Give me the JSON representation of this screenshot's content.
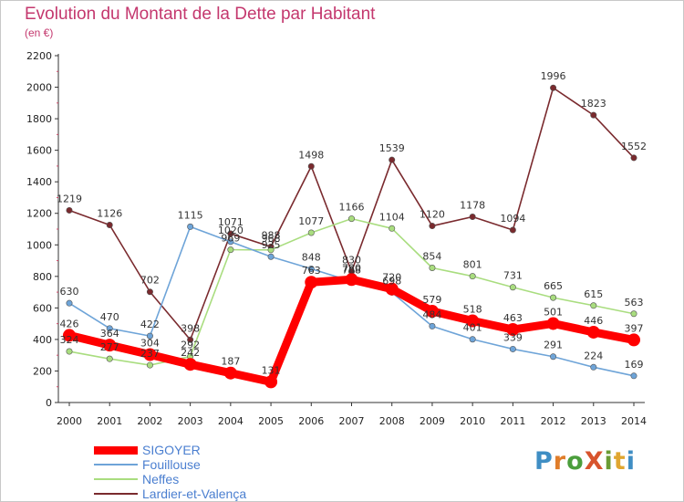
{
  "title": "Evolution du Montant de la Dette par Habitant",
  "subtitle": "(en €)",
  "logo": {
    "text": "ProXiti",
    "letter_colors": [
      "#3f8ec4",
      "#e07d2a",
      "#4b9e3c",
      "#d8542d",
      "#6a9b34",
      "#e0a630",
      "#3f8ec4"
    ]
  },
  "chart_data": {
    "type": "line",
    "title": "Evolution du Montant de la Dette par Habitant",
    "subtitle": "(en €)",
    "xlabel": "",
    "ylabel": "",
    "x": [
      "2000",
      "2001",
      "2002",
      "2003",
      "2004",
      "2005",
      "2006",
      "2007",
      "2008",
      "2009",
      "2010",
      "2011",
      "2012",
      "2013",
      "2014"
    ],
    "ylim": [
      0,
      2200
    ],
    "yticks": [
      "0",
      "200",
      "400",
      "600",
      "800",
      "1000",
      "1200",
      "1400",
      "1600",
      "1800",
      "2000",
      "2200"
    ],
    "grid": false,
    "legend_position": "bottom-left",
    "series": [
      {
        "name": "Lardier-et-Valença",
        "color": "#7a2a2e",
        "values": [
          1219,
          1126,
          702,
          398,
          1071,
          988,
          1498,
          830,
          1539,
          1120,
          1178,
          1094,
          1996,
          1823,
          1552
        ],
        "labels": [
          "1219",
          "1126",
          "702",
          "398",
          "1071",
          "988",
          "1498",
          "830",
          "1539",
          "1120",
          "1178",
          "1094",
          "1996",
          "1823",
          "1552"
        ]
      },
      {
        "name": "Neffes",
        "color": "#a9dd7f",
        "values": [
          324,
          277,
          237,
          292,
          969,
          968,
          1077,
          1166,
          1104,
          854,
          801,
          731,
          665,
          615,
          563
        ],
        "labels": [
          "324",
          "277",
          "237",
          "292",
          "969",
          "968",
          "1077",
          "1166",
          "1104",
          "854",
          "801",
          "731",
          "665",
          "615",
          "563"
        ]
      },
      {
        "name": "Fouillouse",
        "color": "#6ea4d8",
        "values": [
          630,
          470,
          422,
          1115,
          1020,
          925,
          848,
          768,
          698,
          484,
          401,
          339,
          291,
          224,
          169
        ],
        "labels": [
          "630",
          "470",
          "422",
          "1115",
          "1020",
          "925",
          "848",
          "768",
          "698",
          "484",
          "401",
          "339",
          "291",
          "224",
          "169"
        ]
      },
      {
        "name": "SIGOYER",
        "color": "#ff0000",
        "values": [
          426,
          364,
          304,
          242,
          187,
          131,
          763,
          780,
          720,
          579,
          518,
          463,
          501,
          446,
          397
        ],
        "labels": [
          "426",
          "364",
          "304",
          "242",
          "187",
          "131",
          "763",
          "780",
          "720",
          "579",
          "518",
          "463",
          "501",
          "446",
          "397"
        ]
      }
    ]
  },
  "legend": [
    {
      "label": "SIGOYER",
      "color": "#ff0000",
      "thickness": 9
    },
    {
      "label": "Fouillouse",
      "color": "#6ea4d8",
      "thickness": 2
    },
    {
      "label": "Neffes",
      "color": "#a9dd7f",
      "thickness": 2
    },
    {
      "label": "Lardier-et-Valença",
      "color": "#7a2a2e",
      "thickness": 2
    }
  ]
}
